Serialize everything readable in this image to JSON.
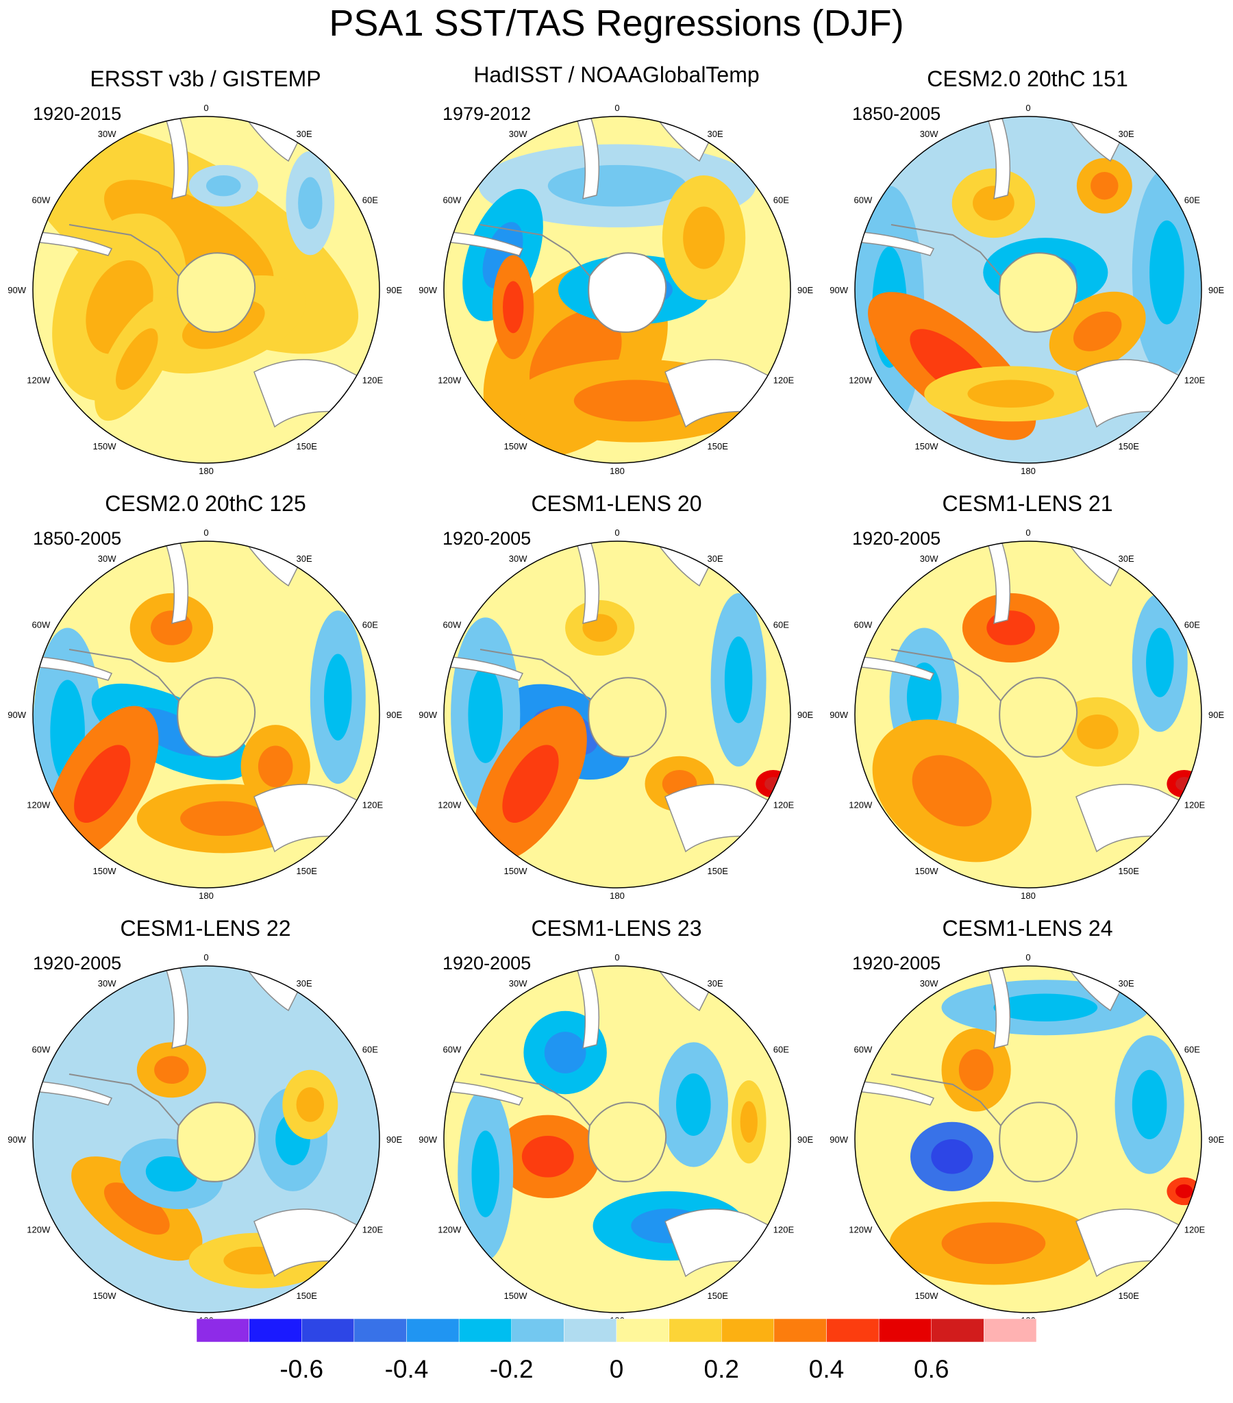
{
  "title": "PSA1 SST/TAS Regressions (DJF)",
  "colors": {
    "levels": [
      "#8e2be8",
      "#1a1aff",
      "#2d46e6",
      "#3872e8",
      "#2095f2",
      "#00bef0",
      "#73c8f0",
      "#b0dcf0",
      "#fff79a",
      "#fcd437",
      "#fcb012",
      "#fc7d0d",
      "#fc3d0f",
      "#e60000",
      "#d21c1c",
      "#ffb2b2"
    ],
    "land": "#ffffff",
    "coast": "#8c8c8c"
  },
  "colorbar": {
    "labels": [
      "-0.6",
      "-0.4",
      "-0.2",
      "0",
      "0.2",
      "0.4",
      "0.6"
    ],
    "label_values": [
      -0.6,
      -0.4,
      -0.2,
      0,
      0.2,
      0.4,
      0.6
    ],
    "level_bounds": [
      -0.7,
      -0.6,
      -0.5,
      -0.4,
      -0.3,
      -0.2,
      -0.1,
      0,
      0.1,
      0.2,
      0.3,
      0.4,
      0.5,
      0.6,
      0.7
    ]
  },
  "longitude_labels": [
    "0",
    "30E",
    "60E",
    "90E",
    "120E",
    "150E",
    "180",
    "150W",
    "120W",
    "90W",
    "60W",
    "30W"
  ],
  "panels": [
    {
      "title": "ERSST v3b / GISTEMP",
      "period": "1920-2015"
    },
    {
      "title": "HadISST / NOAAGlobalTemp",
      "period": "1979-2012"
    },
    {
      "title": "CESM2.0 20thC 151",
      "period": "1850-2005"
    },
    {
      "title": "CESM2.0 20thC 125",
      "period": "1850-2005"
    },
    {
      "title": "CESM1-LENS 20",
      "period": "1920-2005"
    },
    {
      "title": "CESM1-LENS 21",
      "period": "1920-2005"
    },
    {
      "title": "CESM1-LENS 22",
      "period": "1920-2005"
    },
    {
      "title": "CESM1-LENS 23",
      "period": "1920-2005"
    },
    {
      "title": "CESM1-LENS 24",
      "period": "1920-2005"
    }
  ]
}
